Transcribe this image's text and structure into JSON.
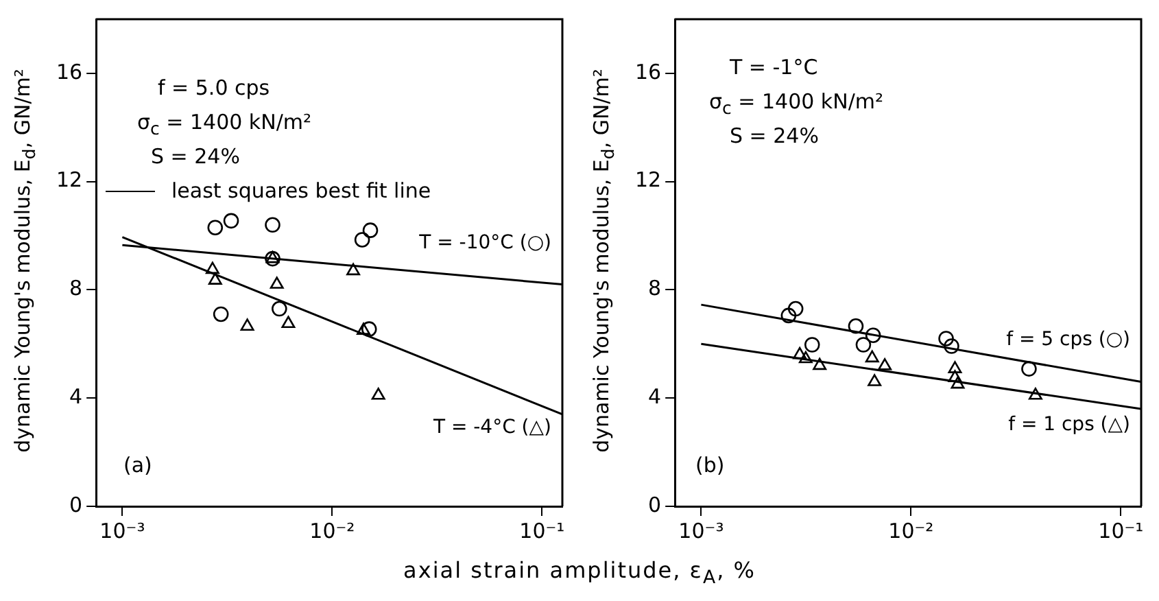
{
  "chart_data": [
    {
      "type": "scatter",
      "ylabel": "dynamic Young's modulus, E$_{d}$, GN/m²",
      "xlabel": "axial strain amplitude, ε$_{A}$, %",
      "log": "x",
      "xlim": [
        0.00075,
        0.125
      ],
      "xticks": [
        {
          "value": 0.001,
          "label": "10⁻³"
        },
        {
          "value": 0.01,
          "label": "10⁻²"
        },
        {
          "value": 0.1,
          "label": "10⁻¹"
        }
      ],
      "ylim": [
        0,
        18
      ],
      "yticks": [
        0,
        4,
        8,
        12,
        16
      ],
      "annotations": [
        "f = 5.0 cps",
        "σ$_{c}$ = 1400 kN/m²",
        "S = 24%",
        "least squares best fit line",
        "(a)"
      ],
      "series": [
        {
          "type": "scatter",
          "marker": "circle",
          "color": "#000000",
          "x": [
            0.00277,
            0.0033,
            0.0052,
            0.0139,
            0.0152,
            0.00295,
            0.0056,
            0.015,
            0.0052
          ],
          "values": [
            10.3,
            10.55,
            10.4,
            9.85,
            10.2,
            7.1,
            7.3,
            6.55,
            9.15
          ]
        },
        {
          "type": "scatter",
          "marker": "triangle",
          "color": "#000000",
          "x": [
            0.00269,
            0.00277,
            0.0052,
            0.00545,
            0.00394,
            0.00618,
            0.0126,
            0.0141,
            0.0166
          ],
          "values": [
            8.75,
            8.35,
            9.15,
            8.2,
            6.65,
            6.75,
            8.7,
            6.5,
            4.1
          ]
        },
        {
          "type": "line",
          "marker": "none",
          "name": "T = -10°C (○)",
          "color": "#000000",
          "x": [
            0.001,
            0.125
          ],
          "values": [
            9.65,
            8.2
          ]
        },
        {
          "type": "line",
          "marker": "none",
          "name": "T = -4°C (△)",
          "color": "#000000",
          "x": [
            0.001,
            0.125
          ],
          "values": [
            9.95,
            3.4
          ]
        }
      ]
    },
    {
      "type": "scatter",
      "ylabel": "dynamic Young's modulus, E$_{d}$, GN/m²",
      "log": "x",
      "xlim": [
        0.00075,
        0.125
      ],
      "xticks": [
        {
          "value": 0.001,
          "label": "10⁻³"
        },
        {
          "value": 0.01,
          "label": "10⁻²"
        },
        {
          "value": 0.1,
          "label": "10⁻¹"
        }
      ],
      "ylim": [
        0,
        18
      ],
      "yticks": [
        0,
        4,
        8,
        12,
        16
      ],
      "annotations": [
        "T = -1°C",
        "σ$_{c}$ = 1400 kN/m²",
        "S = 24%",
        "(b)"
      ],
      "series": [
        {
          "type": "scatter",
          "marker": "circle",
          "color": "#000000",
          "x": [
            0.00261,
            0.00282,
            0.00338,
            0.00546,
            0.00593,
            0.0066,
            0.0147,
            0.0156,
            0.0365
          ],
          "values": [
            7.05,
            7.3,
            5.97,
            6.66,
            5.97,
            6.32,
            6.2,
            5.92,
            5.08
          ]
        },
        {
          "type": "scatter",
          "marker": "triangle",
          "color": "#000000",
          "x": [
            0.00295,
            0.00315,
            0.00367,
            0.00653,
            0.0067,
            0.0075,
            0.0162,
            0.0162,
            0.0167,
            0.0392
          ],
          "values": [
            5.6,
            5.45,
            5.2,
            5.48,
            4.6,
            5.19,
            5.08,
            4.75,
            4.51,
            4.1
          ]
        },
        {
          "type": "line",
          "marker": "none",
          "name": "f = 5 cps (○)",
          "color": "#000000",
          "x": [
            0.001,
            0.125
          ],
          "values": [
            7.45,
            4.6
          ]
        },
        {
          "type": "line",
          "marker": "none",
          "name": "f = 1 cps (△)",
          "color": "#000000",
          "x": [
            0.001,
            0.125
          ],
          "values": [
            6.0,
            3.6
          ]
        }
      ]
    }
  ]
}
